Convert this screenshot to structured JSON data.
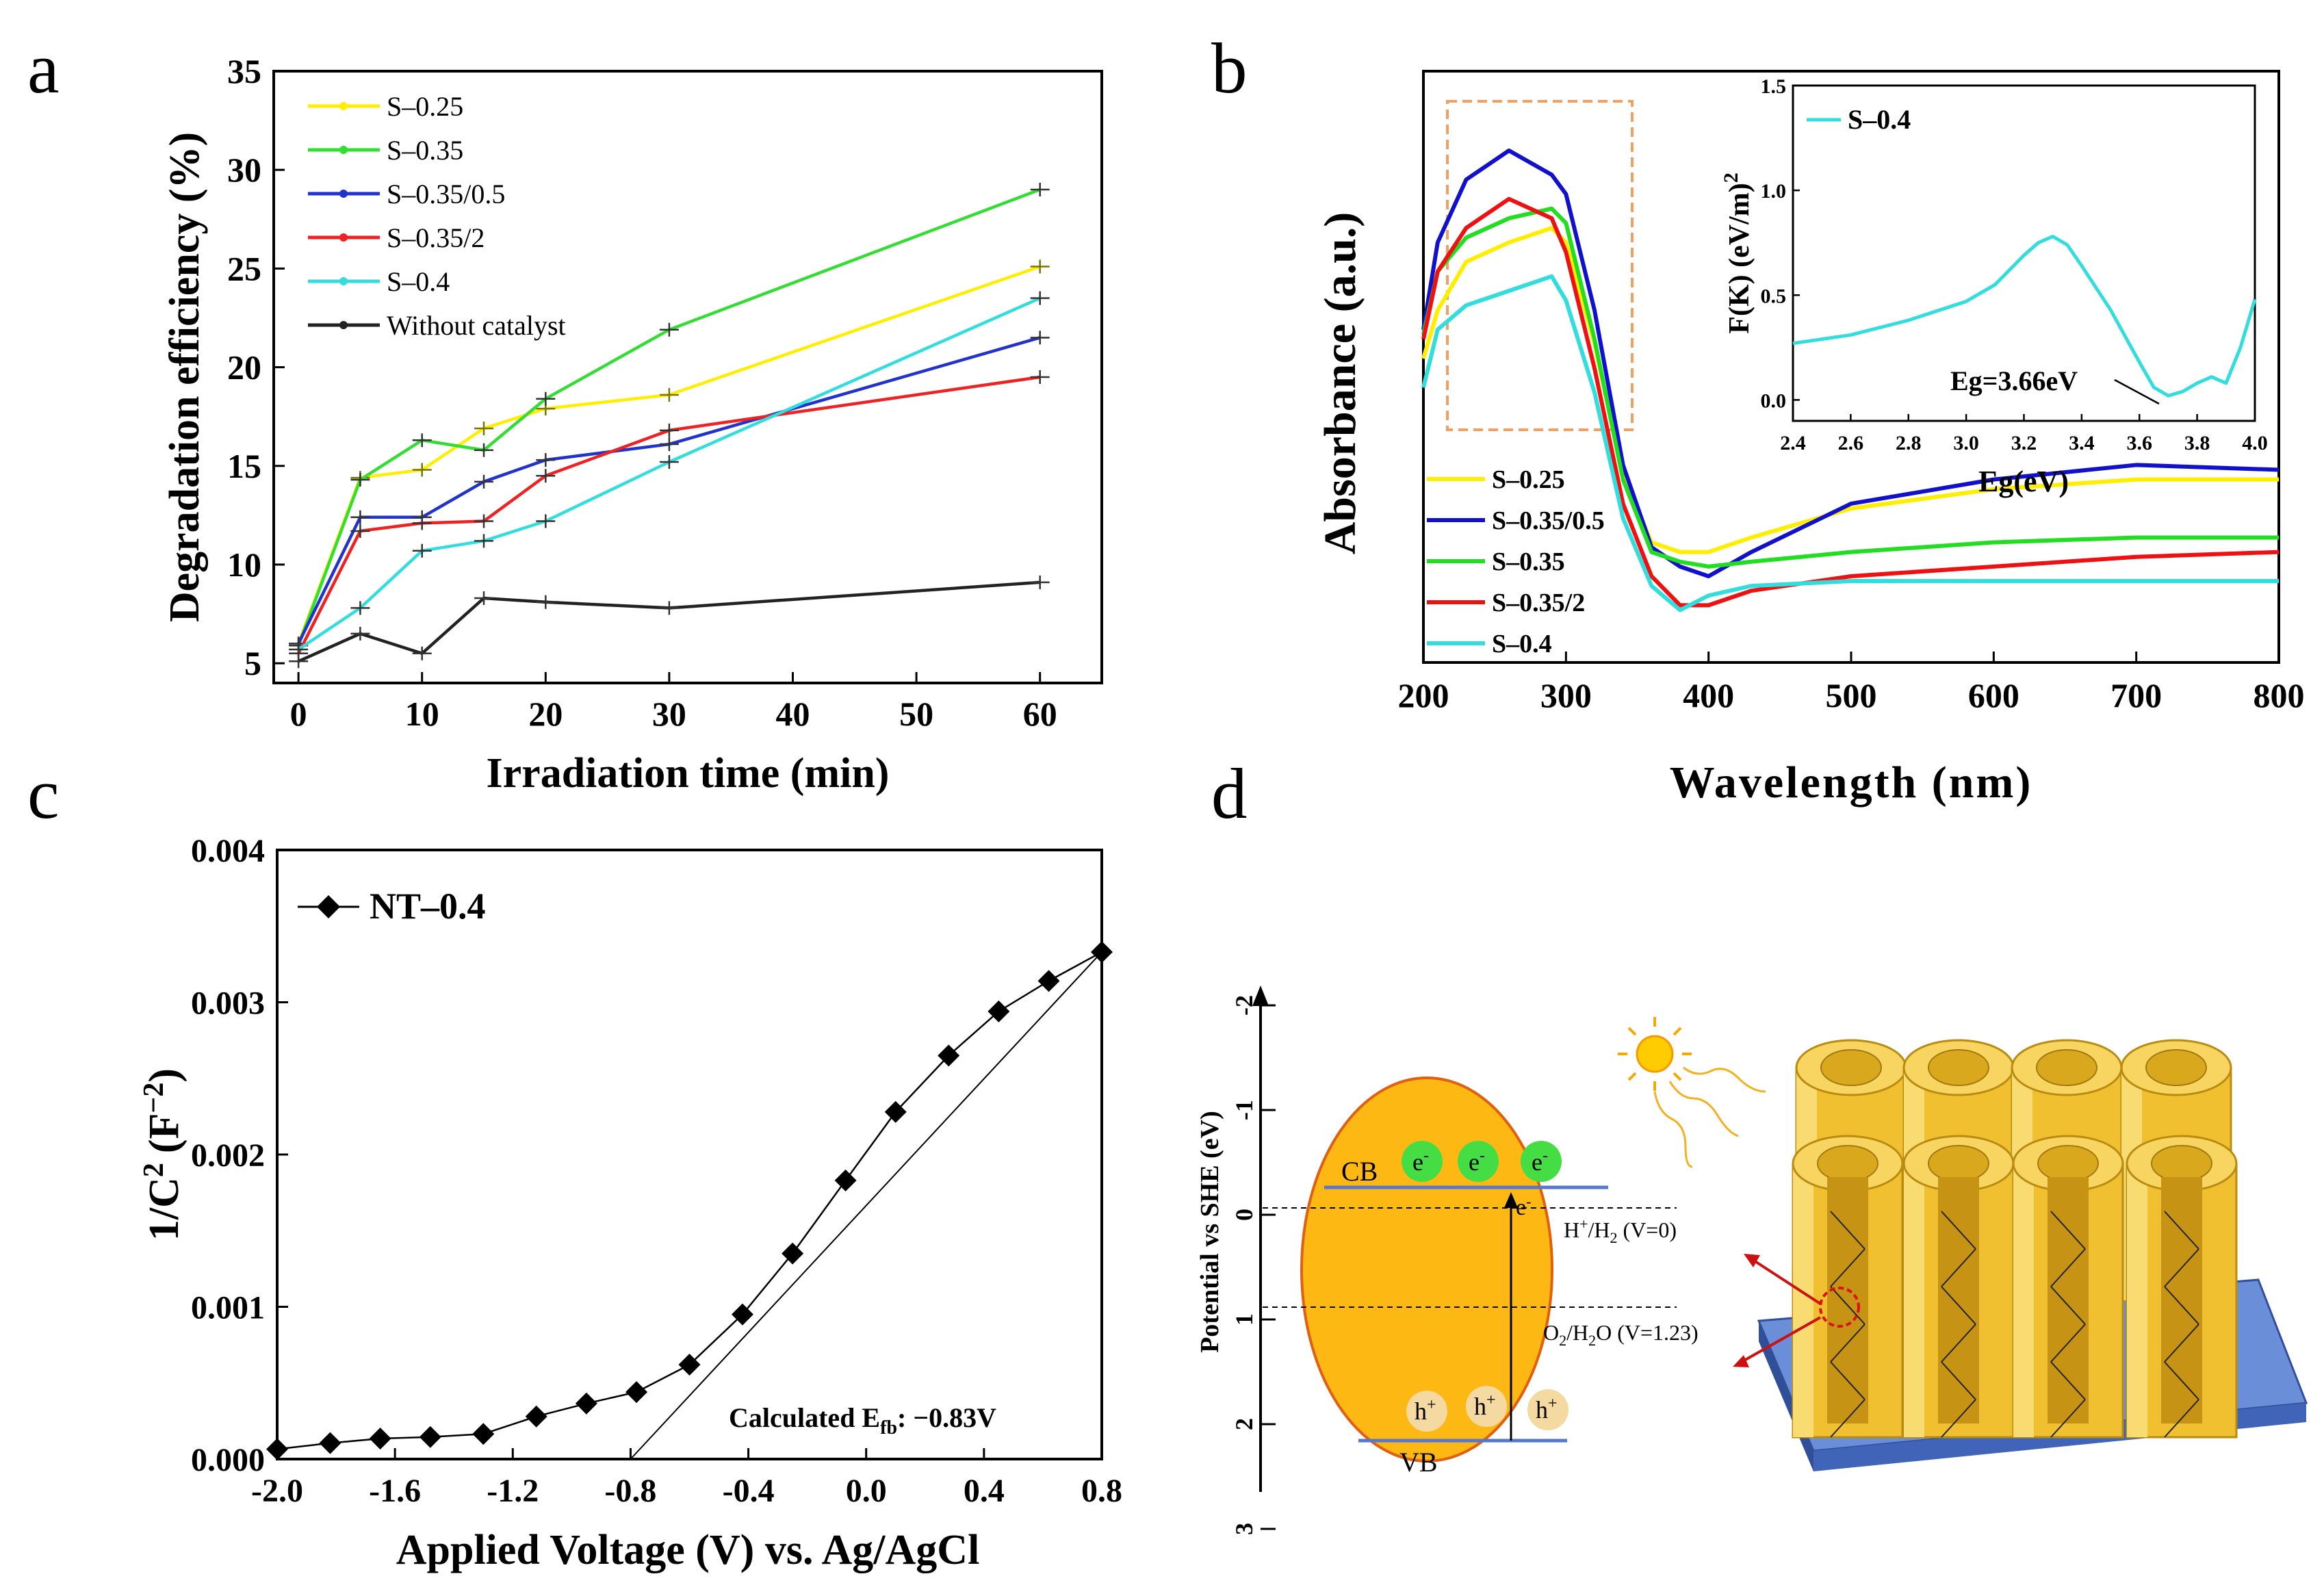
{
  "panel_labels": {
    "a": "a",
    "b": "b",
    "c": "c",
    "d": "d"
  },
  "chart_data": [
    {
      "id": "a",
      "type": "line",
      "xlabel": "Irradiation time (min)",
      "ylabel": "Degradation efficiency (%)",
      "xlim": [
        -2,
        65
      ],
      "ylim": [
        4,
        35
      ],
      "xticks": [
        0,
        10,
        20,
        30,
        40,
        50,
        60
      ],
      "yticks": [
        5,
        10,
        15,
        20,
        25,
        30,
        35
      ],
      "legend_position": "top-left",
      "series": [
        {
          "name": "S–0.25",
          "color": "#ffee00",
          "x": [
            0,
            5,
            10,
            15,
            20,
            30,
            60
          ],
          "y": [
            6.0,
            14.4,
            14.8,
            16.9,
            17.9,
            18.6,
            25.1
          ]
        },
        {
          "name": "S–0.35",
          "color": "#33dd33",
          "x": [
            0,
            5,
            10,
            15,
            20,
            30,
            60
          ],
          "y": [
            5.9,
            14.3,
            16.3,
            15.8,
            18.4,
            21.9,
            29.0
          ]
        },
        {
          "name": "S–0.35/0.5",
          "color": "#2233cc",
          "x": [
            0,
            5,
            10,
            15,
            20,
            30,
            60
          ],
          "y": [
            6.0,
            12.4,
            12.4,
            14.2,
            15.3,
            16.1,
            21.5
          ]
        },
        {
          "name": "S–0.35/2",
          "color": "#ee2222",
          "x": [
            0,
            5,
            10,
            15,
            20,
            30,
            60
          ],
          "y": [
            5.5,
            11.7,
            12.1,
            12.2,
            14.5,
            16.8,
            19.5
          ]
        },
        {
          "name": "S–0.4",
          "color": "#33dddd",
          "x": [
            0,
            5,
            10,
            15,
            20,
            30,
            60
          ],
          "y": [
            5.7,
            7.8,
            10.7,
            11.2,
            12.2,
            15.2,
            23.5
          ]
        },
        {
          "name": "Without catalyst",
          "color": "#222222",
          "x": [
            0,
            5,
            10,
            15,
            20,
            30,
            60
          ],
          "y": [
            5.1,
            6.5,
            5.5,
            8.3,
            8.1,
            7.8,
            9.1
          ]
        }
      ]
    },
    {
      "id": "b",
      "type": "line",
      "xlabel": "Wavelength (nm)",
      "ylabel": "Absorbance (a.u.)",
      "xlim": [
        200,
        800
      ],
      "ylim": [
        0,
        1
      ],
      "xticks": [
        200,
        300,
        400,
        500,
        600,
        700,
        800
      ],
      "legend_position": "bottom-left",
      "series": [
        {
          "name": "S–0.25",
          "color": "#ffee00",
          "x": [
            200,
            210,
            230,
            260,
            290,
            300,
            320,
            340,
            360,
            380,
            400,
            430,
            500,
            600,
            700,
            800
          ],
          "y": [
            0.52,
            0.62,
            0.72,
            0.76,
            0.79,
            0.76,
            0.55,
            0.28,
            0.14,
            0.12,
            0.12,
            0.15,
            0.21,
            0.25,
            0.27,
            0.27
          ]
        },
        {
          "name": "S–0.35/0.5",
          "color": "#1111cc",
          "x": [
            200,
            210,
            230,
            260,
            290,
            300,
            320,
            340,
            360,
            380,
            400,
            430,
            500,
            600,
            700,
            800
          ],
          "y": [
            0.58,
            0.76,
            0.89,
            0.95,
            0.9,
            0.86,
            0.62,
            0.3,
            0.13,
            0.09,
            0.07,
            0.12,
            0.22,
            0.27,
            0.3,
            0.29
          ]
        },
        {
          "name": "S–0.35",
          "color": "#22dd22",
          "x": [
            200,
            210,
            230,
            260,
            290,
            300,
            320,
            340,
            360,
            380,
            400,
            430,
            500,
            600,
            700,
            800
          ],
          "y": [
            0.57,
            0.7,
            0.77,
            0.81,
            0.83,
            0.8,
            0.56,
            0.27,
            0.12,
            0.1,
            0.09,
            0.1,
            0.12,
            0.14,
            0.15,
            0.15
          ]
        },
        {
          "name": "S–0.35/2",
          "color": "#ee1111",
          "x": [
            200,
            210,
            230,
            260,
            290,
            300,
            320,
            340,
            360,
            380,
            400,
            430,
            500,
            600,
            700,
            800
          ],
          "y": [
            0.56,
            0.7,
            0.79,
            0.85,
            0.81,
            0.74,
            0.5,
            0.22,
            0.07,
            0.01,
            0.01,
            0.04,
            0.07,
            0.09,
            0.11,
            0.12
          ]
        },
        {
          "name": "S–0.4",
          "color": "#33dddd",
          "x": [
            200,
            210,
            230,
            260,
            290,
            300,
            320,
            340,
            360,
            380,
            400,
            430,
            500,
            600,
            700,
            800
          ],
          "y": [
            0.46,
            0.58,
            0.63,
            0.66,
            0.69,
            0.64,
            0.45,
            0.19,
            0.05,
            0.0,
            0.03,
            0.05,
            0.06,
            0.06,
            0.06,
            0.06
          ]
        }
      ],
      "inset": {
        "type": "line",
        "xlabel": "Eg(eV)",
        "ylabel": "F(K) (eV/m)",
        "ylabel_sup": "2",
        "xlim": [
          2.4,
          4.0
        ],
        "ylim": [
          -0.1,
          1.5
        ],
        "xticks": [
          "2.4",
          "2.6",
          "2.8",
          "3.0",
          "3.2",
          "3.4",
          "3.6",
          "3.8",
          "4.0"
        ],
        "yticks": [
          "0.0",
          "0.5",
          "1.0",
          "1.5"
        ],
        "legend": "S–0.4",
        "annotation": "Eg=3.66eV",
        "series": [
          {
            "name": "S–0.4",
            "color": "#33dddd",
            "x": [
              2.4,
              2.6,
              2.8,
              3.0,
              3.1,
              3.2,
              3.25,
              3.3,
              3.35,
              3.4,
              3.5,
              3.6,
              3.65,
              3.7,
              3.75,
              3.8,
              3.85,
              3.9,
              3.95,
              4.0
            ],
            "y": [
              0.27,
              0.31,
              0.38,
              0.47,
              0.55,
              0.69,
              0.75,
              0.78,
              0.74,
              0.64,
              0.43,
              0.18,
              0.06,
              0.02,
              0.04,
              0.08,
              0.11,
              0.08,
              0.25,
              0.48
            ]
          }
        ]
      }
    },
    {
      "id": "c",
      "type": "line",
      "xlabel": "Applied Voltage (V) vs. Ag/AgCl",
      "ylabel": "1/C",
      "ylabel_sup": "2",
      "ylabel_unit": "(F",
      "ylabel_unit_sup": "−2",
      "ylabel_close": ")",
      "xlim": [
        -2.0,
        0.8
      ],
      "ylim": [
        0,
        0.004
      ],
      "xticks": [
        "-2.0",
        "-1.6",
        "-1.2",
        "-0.8",
        "-0.4",
        "0.0",
        "0.4",
        "0.8"
      ],
      "yticks": [
        "0.000",
        "0.001",
        "0.002",
        "0.003",
        "0.004"
      ],
      "legend_position": "top-left",
      "annotation_prefix": "Calculated E",
      "annotation_sub": "fb",
      "annotation_value": ": −0.83V",
      "series": [
        {
          "name": "NT–0.4",
          "color": "#000000",
          "marker": "diamond",
          "x": [
            -2.0,
            -1.82,
            -1.65,
            -1.48,
            -1.3,
            -1.12,
            -0.95,
            -0.78,
            -0.6,
            -0.42,
            -0.25,
            -0.07,
            0.1,
            0.28,
            0.45,
            0.62,
            0.8
          ],
          "y": [
            6.5e-05,
            0.000105,
            0.000135,
            0.000145,
            0.000165,
            0.00028,
            0.000365,
            0.00044,
            0.00062,
            0.00095,
            0.00135,
            0.00183,
            0.00228,
            0.00265,
            0.00294,
            0.00314,
            0.00333
          ]
        },
        {
          "name": "fit",
          "color": "#000000",
          "x": [
            -0.8,
            0.8
          ],
          "y": [
            0.0,
            0.00333
          ]
        }
      ]
    }
  ],
  "diagram_d": {
    "axis_label": "Potential  vs SHE (eV)",
    "ticks": [
      "-2",
      "-1",
      "0",
      "1",
      "2",
      "3"
    ],
    "cb": "CB",
    "vb": "VB",
    "electron": "e",
    "electron_sup": "-",
    "hole": "h",
    "hole_sup": "+",
    "h_label_main": "H",
    "h_label_sup": "+",
    "h_label_mid": "/H",
    "h_label_sub": "2",
    "h_label_end": " (V=0)",
    "o_label_main": "O",
    "o_label_sub1": "2",
    "o_label_mid": "/H",
    "o_label_sub2": "2",
    "o_label_end": "O (V=1.23)",
    "colors": {
      "oval": "#fdb813",
      "oval_edge": "#e06010",
      "electron": "#44dd44",
      "hole": "#f4d9a0",
      "tube": "#f0c030",
      "substrate": "#5577cc",
      "sun": "#ffcc00",
      "arrow": "#cc1111"
    }
  }
}
